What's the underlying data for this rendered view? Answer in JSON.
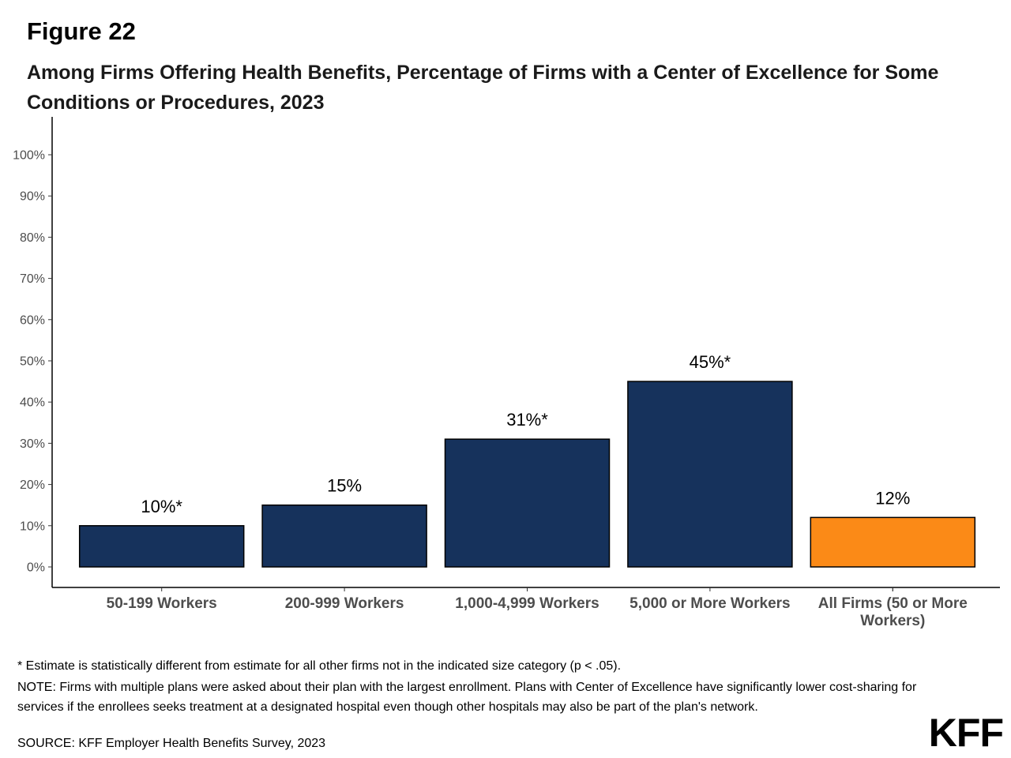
{
  "figure_label": "Figure 22",
  "title": "Among Firms Offering Health Benefits, Percentage of Firms with a Center of Excellence for Some Conditions or Procedures, 2023",
  "chart_data": {
    "type": "bar",
    "categories": [
      [
        "50-199 Workers"
      ],
      [
        "200-999 Workers"
      ],
      [
        "1,000-4,999 Workers"
      ],
      [
        "5,000 or More Workers"
      ],
      [
        "All Firms (50 or More",
        "Workers)"
      ]
    ],
    "values": [
      10,
      15,
      31,
      45,
      12
    ],
    "data_labels": [
      "10%*",
      "15%",
      "31%*",
      "45%*",
      "12%"
    ],
    "bar_colors": [
      "#16325c",
      "#16325c",
      "#16325c",
      "#16325c",
      "#fb8a17"
    ],
    "ylim": [
      0,
      100
    ],
    "yticks": [
      0,
      10,
      20,
      30,
      40,
      50,
      60,
      70,
      80,
      90,
      100
    ],
    "ytick_labels": [
      "0%",
      "10%",
      "20%",
      "30%",
      "40%",
      "50%",
      "60%",
      "70%",
      "80%",
      "90%",
      "100%"
    ],
    "grid": false,
    "legend": "none"
  },
  "notes": {
    "footnote": "* Estimate is statistically different from estimate for all other firms not in the indicated size category (p < .05).",
    "note": "NOTE: Firms with multiple plans were asked about their plan with the largest enrollment.  Plans with Center of Excellence have significantly lower cost-sharing for services if the enrollees seeks treatment at a designated hospital even though other hospitals may also be part of the plan's network.",
    "source": "SOURCE: KFF Employer Health Benefits Survey, 2023"
  },
  "logo": "KFF"
}
